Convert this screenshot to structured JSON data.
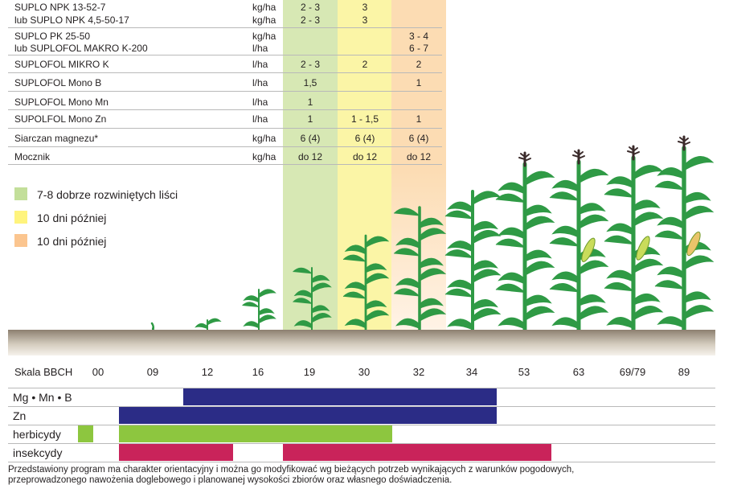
{
  "colors": {
    "green_band": "#d7e8b4",
    "yellow_band": "#fbf5a6",
    "orange_band": "#fcdcb3",
    "legend_green": "#c3df9a",
    "legend_yellow": "#fff47d",
    "legend_orange": "#fbc58f",
    "bar_blue": "#2b2c86",
    "bar_green": "#8dc63f",
    "bar_red": "#c9235a",
    "plant": "#2f9a45",
    "tassel": "#3b2b2b",
    "ear": "#c9dc5b",
    "ear_ripe": "#e9c46a"
  },
  "products": [
    {
      "name": "SUPLO NPK 13-52-7",
      "unit": "kg/ha",
      "green": "2 - 3",
      "yellow": "3",
      "orange": ""
    },
    {
      "name": "lub SUPLO NPK 4,5-50-17",
      "unit": "kg/ha",
      "green": "2 - 3",
      "yellow": "3",
      "orange": ""
    },
    {
      "name": "SUPLO PK 25-50",
      "unit": "kg/ha",
      "green": "",
      "yellow": "",
      "orange": "3 - 4"
    },
    {
      "name": "lub SUPLOFOL MAKRO K-200",
      "unit": "l/ha",
      "green": "",
      "yellow": "",
      "orange": "6 - 7"
    },
    {
      "name": "SUPLOFOL MIKRO K",
      "unit": "l/ha",
      "green": "2 - 3",
      "yellow": "2",
      "orange": "2"
    },
    {
      "name": "SUPLOFOL Mono B",
      "unit": "l/ha",
      "green": "1,5",
      "yellow": "",
      "orange": "1"
    },
    {
      "name": "SUPLOFOL Mono Mn",
      "unit": "l/ha",
      "green": "1",
      "yellow": "",
      "orange": ""
    },
    {
      "name": "SUPOLFOL Mono Zn",
      "unit": "l/ha",
      "green": "1",
      "yellow": "1 - 1,5",
      "orange": "1"
    },
    {
      "name": "Siarczan magnezu*",
      "unit": "kg/ha",
      "green": "6 (4)",
      "yellow": "6 (4)",
      "orange": "6 (4)"
    },
    {
      "name": "Mocznik",
      "unit": "kg/ha",
      "green": "do 12",
      "yellow": "do 12",
      "orange": "do 12"
    }
  ],
  "legend": [
    {
      "label": "7-8 dobrze rozwiniętych liści"
    },
    {
      "label": "10 dni później"
    },
    {
      "label": "10 dni później"
    }
  ],
  "bbch": {
    "label": "Skala BBCH",
    "stages": [
      "00",
      "09",
      "12",
      "16",
      "19",
      "30",
      "32",
      "34",
      "53",
      "63",
      "69/79",
      "89"
    ]
  },
  "timing_rows": [
    {
      "label": "Mg • Mn • B"
    },
    {
      "label": "Zn"
    },
    {
      "label": "herbicydy"
    },
    {
      "label": "insekcydy"
    }
  ],
  "footnote": {
    "line1": "Przedstawiony program ma charakter orientacyjny i można go modyfikować wg bieżących potrzeb wynikających z warunków pogodowych,",
    "line2": "przeprowadzonego nawożenia doglebowego i planowanej wysokości zbiorów oraz własnego doświadczenia."
  }
}
